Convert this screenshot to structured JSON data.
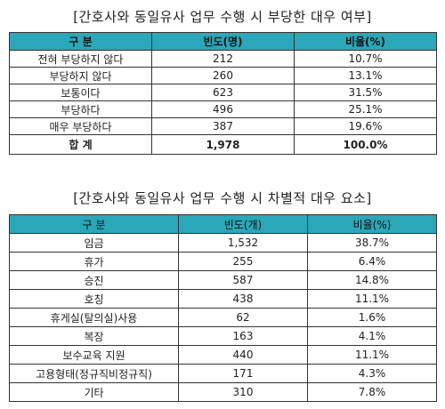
{
  "table1": {
    "title": "[간호사와 동일유사 업무 수행 시 부당한 대우 여부]",
    "headers": [
      "구 분",
      "빈도(명)",
      "비율(%)"
    ],
    "rows": [
      [
        "전혀 부당하지 않다",
        "212",
        "10.7%"
      ],
      [
        "부당하지 않다",
        "260",
        "13.1%"
      ],
      [
        "보통이다",
        "623",
        "31.5%"
      ],
      [
        "부당하다",
        "496",
        "25.1%"
      ],
      [
        "매우 부당하다",
        "387",
        "19.6%"
      ]
    ],
    "total": [
      "합 계",
      "1,978",
      "100.0%"
    ]
  },
  "table2": {
    "title": "[간호사와 동일유사 업무 수행 시 차별적 대우 요소]",
    "headers": [
      "구 분",
      "빈도(개)",
      "비율(%)"
    ],
    "rows": [
      [
        "임금",
        "1,532",
        "38.7%"
      ],
      [
        "휴가",
        "255",
        "6.4%"
      ],
      [
        "승진",
        "587",
        "14.8%"
      ],
      [
        "호칭",
        "438",
        "11.1%"
      ],
      [
        "휴게실(탈의실)사용",
        "62",
        "1.6%"
      ],
      [
        "복장",
        "163",
        "4.1%"
      ],
      [
        "보수교육 지원",
        "440",
        "11.1%"
      ],
      [
        "고용형태(정규직비정규직)",
        "171",
        "4.3%"
      ],
      [
        "기타",
        "310",
        "7.8%"
      ]
    ]
  }
}
